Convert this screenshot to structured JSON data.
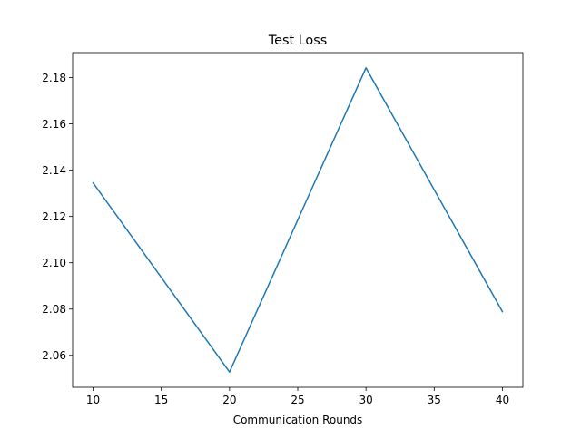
{
  "chart_data": {
    "type": "line",
    "title": "Test Loss",
    "xlabel": "Communication Rounds",
    "ylabel": "",
    "x": [
      10,
      20,
      30,
      40
    ],
    "series": [
      {
        "values": [
          2.1345,
          2.0528,
          2.1842,
          2.0789
        ],
        "color": "#1f77b4"
      }
    ],
    "xlim": [
      8.5,
      41.5
    ],
    "ylim": [
      2.0462,
      2.1908
    ],
    "xticks": [
      10,
      15,
      20,
      25,
      30,
      35,
      40
    ],
    "yticks": [
      2.06,
      2.08,
      2.1,
      2.12,
      2.14,
      2.16,
      2.18
    ],
    "ytick_labels": [
      "2.06",
      "2.08",
      "2.10",
      "2.12",
      "2.14",
      "2.16",
      "2.18"
    ],
    "grid": false,
    "legend": "none"
  }
}
